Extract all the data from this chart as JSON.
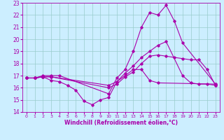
{
  "xlabel": "Windchill (Refroidissement éolien,°C)",
  "xlim": [
    -0.5,
    23.5
  ],
  "ylim": [
    14,
    23
  ],
  "xticks": [
    0,
    1,
    2,
    3,
    4,
    5,
    6,
    7,
    8,
    9,
    10,
    11,
    12,
    13,
    14,
    15,
    16,
    17,
    18,
    19,
    20,
    21,
    22,
    23
  ],
  "yticks": [
    14,
    15,
    16,
    17,
    18,
    19,
    20,
    21,
    22,
    23
  ],
  "background_color": "#cceeff",
  "grid_color": "#99cccc",
  "line_color": "#aa00aa",
  "lines": [
    {
      "x": [
        0,
        1,
        2,
        3,
        4,
        10,
        11,
        12,
        13,
        14,
        15,
        16,
        17,
        18,
        19,
        23
      ],
      "y": [
        16.8,
        16.8,
        17.0,
        17.0,
        17.0,
        15.5,
        16.8,
        17.5,
        19.0,
        21.0,
        22.2,
        22.0,
        22.8,
        21.5,
        19.7,
        16.3
      ]
    },
    {
      "x": [
        0,
        1,
        2,
        3,
        10,
        11,
        12,
        13,
        14,
        15,
        16,
        17,
        19,
        20,
        21,
        22,
        23
      ],
      "y": [
        16.8,
        16.8,
        16.9,
        16.9,
        16.2,
        16.5,
        17.2,
        17.8,
        18.5,
        19.0,
        19.5,
        19.8,
        17.0,
        16.4,
        16.3,
        16.3,
        16.2
      ]
    },
    {
      "x": [
        0,
        1,
        2,
        3,
        10,
        11,
        12,
        13,
        14,
        15,
        16,
        17,
        18,
        19,
        20,
        21,
        22,
        23
      ],
      "y": [
        16.8,
        16.8,
        16.9,
        16.9,
        16.0,
        16.3,
        16.9,
        17.3,
        18.0,
        18.6,
        18.7,
        18.6,
        18.5,
        18.4,
        18.3,
        18.3,
        17.5,
        16.2
      ]
    },
    {
      "x": [
        0,
        1,
        2,
        3,
        4,
        5,
        6,
        7,
        8,
        9,
        10,
        11,
        12,
        13,
        14,
        15,
        16,
        23
      ],
      "y": [
        16.8,
        16.8,
        16.9,
        16.6,
        16.5,
        16.2,
        15.8,
        14.9,
        14.6,
        15.0,
        15.2,
        16.5,
        17.0,
        17.5,
        17.5,
        16.6,
        16.4,
        16.3
      ]
    }
  ]
}
